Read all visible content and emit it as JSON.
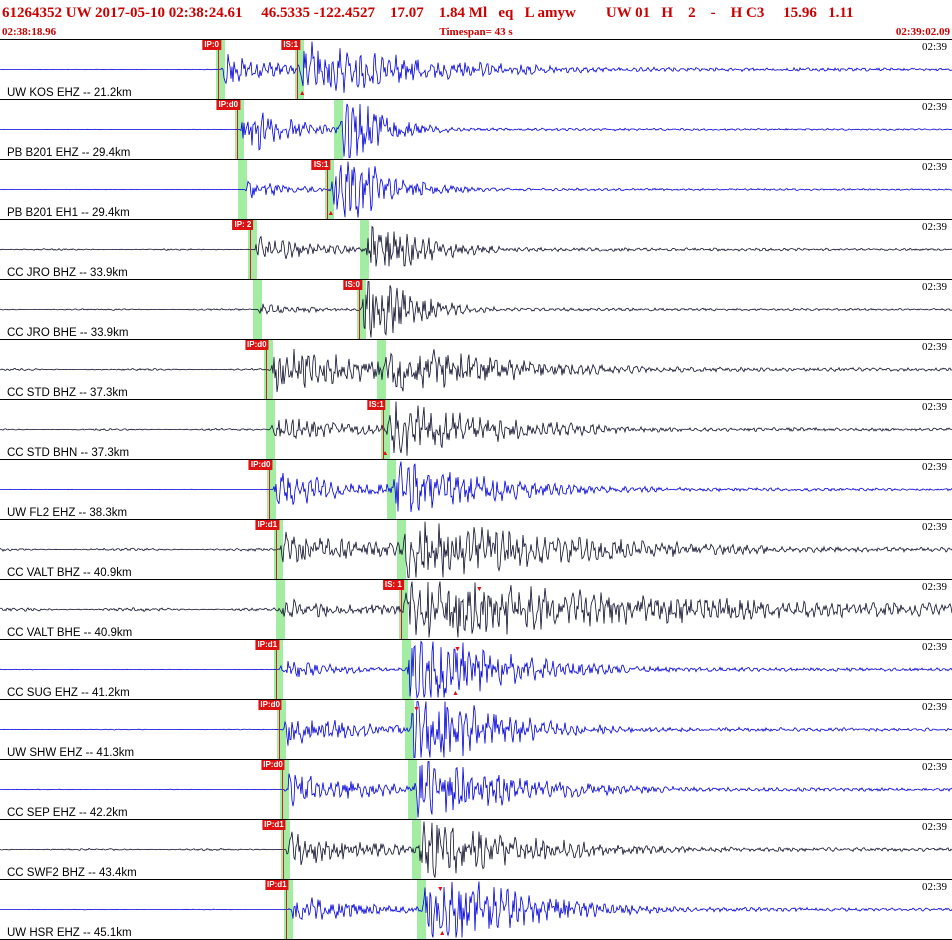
{
  "header": {
    "title_line": "61264352 UW 2017-05-10 02:38:24.61     46.5335 -122.4527    17.07    1.84 Ml   eq   L amyw        UW 01   H    2    -    H C3     15.96   1.11"
  },
  "timebar": {
    "start_time": "02:38:18.96",
    "timespan_label": "Timespan=  43 s",
    "end_time": "02:39:02.09"
  },
  "colors": {
    "blue": "#0000dd",
    "dark": "#101030",
    "band": "#a2eda2",
    "flag_bg": "#dd1111",
    "flag_text": "#ffffff",
    "header_text": "#cc0000",
    "marker": "#dd1111"
  },
  "traces": [
    {
      "label": "UW KOS EHZ -- 21.2km",
      "time_label": "02:39",
      "color": "blue",
      "picks": [
        {
          "label": "IP:0",
          "x": 0.229
        },
        {
          "label": "IS:1",
          "x": 0.312
        }
      ],
      "markers": [
        {
          "x": 0.317,
          "pos": "bottom"
        }
      ],
      "wave": {
        "p": 0.232,
        "s": 0.315,
        "noise": 0.008,
        "pAmp": 0.5,
        "pTau": 0.06,
        "sAmp": 0.85,
        "sTau": 0.13,
        "tail": 0.1,
        "seed": 11
      }
    },
    {
      "label": "PB B201 EHZ -- 29.4km",
      "time_label": "02:39",
      "color": "blue",
      "picks": [
        {
          "label": "IP:d0",
          "x": 0.249
        },
        {
          "label": "",
          "x": 0.353
        }
      ],
      "markers": [],
      "wave": {
        "p": 0.252,
        "s": 0.356,
        "noise": 0.006,
        "pAmp": 0.85,
        "pTau": 0.05,
        "sAmp": 1.4,
        "sTau": 0.04,
        "tail": 0.05,
        "seed": 22
      }
    },
    {
      "label": "PB B201 EH1 -- 29.4km",
      "time_label": "02:39",
      "color": "blue",
      "picks": [
        {
          "label": "",
          "x": 0.252
        },
        {
          "label": "IS:1",
          "x": 0.344
        }
      ],
      "markers": [
        {
          "x": 0.347,
          "pos": "bottom"
        }
      ],
      "wave": {
        "p": 0.255,
        "s": 0.347,
        "noise": 0.006,
        "pAmp": 0.3,
        "pTau": 0.05,
        "sAmp": 1.5,
        "sTau": 0.05,
        "tail": 0.05,
        "seed": 33
      }
    },
    {
      "label": "CC JRO BHZ -- 33.9km",
      "time_label": "02:39",
      "color": "dark",
      "picks": [
        {
          "label": "IP: 2",
          "x": 0.263
        },
        {
          "label": "",
          "x": 0.38
        }
      ],
      "markers": [],
      "wave": {
        "p": 0.266,
        "s": 0.383,
        "noise": 0.025,
        "pAmp": 0.4,
        "pTau": 0.07,
        "sAmp": 0.95,
        "sTau": 0.06,
        "tail": 0.07,
        "seed": 44
      }
    },
    {
      "label": "CC JRO BHE -- 33.9km",
      "time_label": "02:39",
      "color": "dark",
      "picks": [
        {
          "label": "",
          "x": 0.268
        },
        {
          "label": "IS:0",
          "x": 0.377
        }
      ],
      "markers": [],
      "wave": {
        "p": 0.27,
        "s": 0.38,
        "noise": 0.025,
        "pAmp": 0.18,
        "pTau": 0.06,
        "sAmp": 1.45,
        "sTau": 0.045,
        "tail": 0.06,
        "seed": 55
      }
    },
    {
      "label": "CC STD BHZ -- 37.3km",
      "time_label": "02:39",
      "color": "dark",
      "picks": [
        {
          "label": "IP:d0",
          "x": 0.279
        },
        {
          "label": "",
          "x": 0.398
        }
      ],
      "markers": [],
      "wave": {
        "p": 0.283,
        "s": 0.401,
        "noise": 0.03,
        "pAmp": 0.65,
        "pTau": 0.15,
        "sAmp": 0.8,
        "sTau": 0.13,
        "tail": 0.1,
        "seed": 66
      }
    },
    {
      "label": "CC STD BHN -- 37.3km",
      "time_label": "02:39",
      "color": "dark",
      "picks": [
        {
          "label": "",
          "x": 0.281
        },
        {
          "label": "IS:1",
          "x": 0.402
        }
      ],
      "markers": [
        {
          "x": 0.404,
          "pos": "bottom"
        }
      ],
      "wave": {
        "p": 0.284,
        "s": 0.405,
        "noise": 0.03,
        "pAmp": 0.4,
        "pTau": 0.1,
        "sAmp": 0.85,
        "sTau": 0.12,
        "tail": 0.09,
        "seed": 77
      }
    },
    {
      "label": "UW FL2 EHZ -- 38.3km",
      "time_label": "02:39",
      "color": "blue",
      "picks": [
        {
          "label": "IP:d0",
          "x": 0.283
        },
        {
          "label": "",
          "x": 0.409
        }
      ],
      "markers": [],
      "wave": {
        "p": 0.286,
        "s": 0.412,
        "noise": 0.006,
        "pAmp": 0.55,
        "pTau": 0.09,
        "sAmp": 0.85,
        "sTau": 0.11,
        "tail": 0.08,
        "seed": 88
      }
    },
    {
      "label": "CC VALT BHZ -- 40.9km",
      "time_label": "02:39",
      "color": "dark",
      "picks": [
        {
          "label": "IP:d1",
          "x": 0.29
        },
        {
          "label": "",
          "x": 0.419
        }
      ],
      "markers": [],
      "wave": {
        "p": 0.293,
        "s": 0.422,
        "noise": 0.04,
        "pAmp": 0.5,
        "pTau": 0.12,
        "sAmp": 0.95,
        "sTau": 0.18,
        "tail": 0.14,
        "seed": 99
      }
    },
    {
      "label": "CC VALT BHE -- 40.9km",
      "time_label": "02:39",
      "color": "dark",
      "picks": [
        {
          "label": "",
          "x": 0.292
        },
        {
          "label": "IS: 1",
          "x": 0.421
        }
      ],
      "markers": [
        {
          "x": 0.503,
          "pos": "top"
        }
      ],
      "wave": {
        "p": 0.295,
        "s": 0.424,
        "noise": 0.05,
        "pAmp": 0.3,
        "pTau": 0.1,
        "sAmp": 1.0,
        "sTau": 0.28,
        "tail": 0.4,
        "seed": 110
      }
    },
    {
      "label": "CC SUG EHZ -- 41.2km",
      "time_label": "02:39",
      "color": "blue",
      "picks": [
        {
          "label": "IP:d1",
          "x": 0.29
        },
        {
          "label": "",
          "x": 0.424
        }
      ],
      "markers": [
        {
          "x": 0.48,
          "pos": "top"
        },
        {
          "x": 0.478,
          "pos": "bottom"
        }
      ],
      "wave": {
        "p": 0.293,
        "s": 0.427,
        "noise": 0.008,
        "pAmp": 0.35,
        "pTau": 0.06,
        "sAmp": 1.5,
        "sTau": 0.09,
        "tail": 0.09,
        "seed": 121
      }
    },
    {
      "label": "UW SHW EHZ -- 41.3km",
      "time_label": "02:39",
      "color": "blue",
      "picks": [
        {
          "label": "IP:d0",
          "x": 0.293
        },
        {
          "label": "",
          "x": 0.428
        }
      ],
      "markers": [
        {
          "x": 0.437,
          "pos": "top"
        }
      ],
      "wave": {
        "p": 0.296,
        "s": 0.431,
        "noise": 0.012,
        "pAmp": 0.55,
        "pTau": 0.08,
        "sAmp": 1.5,
        "sTau": 0.08,
        "tail": 0.09,
        "seed": 132
      }
    },
    {
      "label": "CC SEP EHZ -- 42.2km",
      "time_label": "02:39",
      "color": "blue",
      "picks": [
        {
          "label": "IP:d0",
          "x": 0.296
        },
        {
          "label": "",
          "x": 0.431
        }
      ],
      "markers": [],
      "wave": {
        "p": 0.299,
        "s": 0.434,
        "noise": 0.008,
        "pAmp": 0.6,
        "pTau": 0.09,
        "sAmp": 0.95,
        "sTau": 0.11,
        "tail": 0.09,
        "seed": 143
      }
    },
    {
      "label": "CC SWF2 BHZ -- 43.4km",
      "time_label": "02:39",
      "color": "dark",
      "picks": [
        {
          "label": "IP:d1",
          "x": 0.297
        },
        {
          "label": "",
          "x": 0.435
        }
      ],
      "markers": [],
      "wave": {
        "p": 0.3,
        "s": 0.438,
        "noise": 0.03,
        "pAmp": 0.55,
        "pTau": 0.09,
        "sAmp": 0.95,
        "sTau": 0.12,
        "tail": 0.1,
        "seed": 154
      }
    },
    {
      "label": "UW HSR EHZ -- 45.1km",
      "time_label": "02:39",
      "color": "blue",
      "picks": [
        {
          "label": "IP:d1",
          "x": 0.3
        },
        {
          "label": "",
          "x": 0.44
        }
      ],
      "markers": [
        {
          "x": 0.462,
          "pos": "top"
        },
        {
          "x": 0.464,
          "pos": "bottom"
        }
      ],
      "wave": {
        "p": 0.303,
        "s": 0.443,
        "noise": 0.008,
        "pAmp": 0.45,
        "pTau": 0.08,
        "sAmp": 1.5,
        "sTau": 0.09,
        "tail": 0.09,
        "seed": 165
      }
    }
  ]
}
